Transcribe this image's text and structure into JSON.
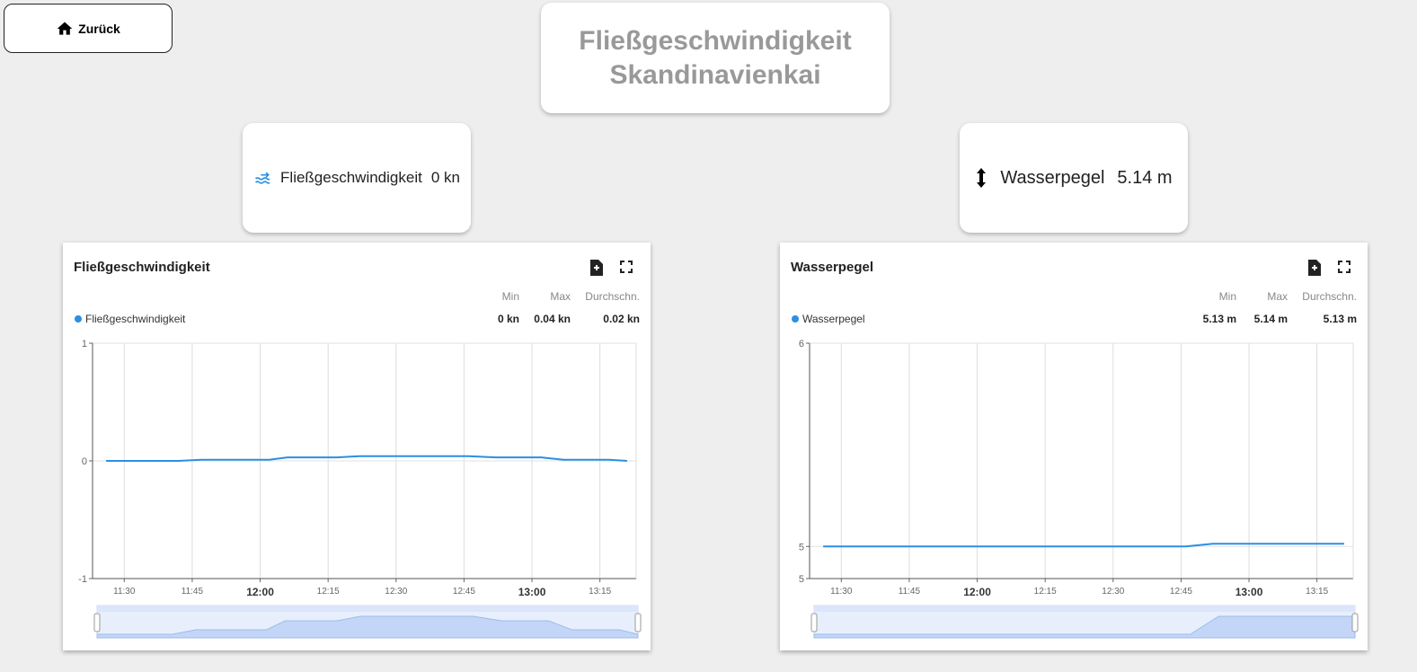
{
  "header": {
    "back_label": "Zurück",
    "title": [
      "Fließgeschwindigkeit",
      "Skandinavienkai"
    ]
  },
  "cards": [
    {
      "label": "Fließgeschwindigkeit",
      "value": "0 kn"
    },
    {
      "label": "Wasserpegel",
      "value": "5.14 m"
    }
  ],
  "chart_data": [
    {
      "type": "line",
      "title": "Fließgeschwindigkeit",
      "stats_headers": [
        "Min",
        "Max",
        "Durchschn."
      ],
      "stats_values": [
        "0 kn",
        "0.04 kn",
        "0.02 kn"
      ],
      "x": [
        "11:26",
        "11:33",
        "11:42",
        "11:47",
        "12:02",
        "12:06",
        "12:17",
        "12:22",
        "12:46",
        "12:52",
        "13:02",
        "13:07",
        "13:17",
        "13:21"
      ],
      "series": [
        {
          "name": "Fließgeschwindigkeit",
          "color": "#2b8fe3",
          "values": [
            0,
            0,
            0,
            0.01,
            0.01,
            0.03,
            0.03,
            0.04,
            0.04,
            0.03,
            0.03,
            0.01,
            0.01,
            0
          ]
        }
      ],
      "xlim": [
        "11:23",
        "13:23"
      ],
      "xticks": [
        "11:30",
        "11:45",
        "12:00",
        "12:15",
        "12:30",
        "12:45",
        "13:00",
        "13:15"
      ],
      "ylim": [
        -1,
        1
      ],
      "yticks": [
        -1,
        0,
        1
      ],
      "grid": true
    },
    {
      "type": "line",
      "title": "Wasserpegel",
      "stats_headers": [
        "Min",
        "Max",
        "Durchschn."
      ],
      "stats_values": [
        "5.13 m",
        "5.14 m",
        "5.13 m"
      ],
      "x": [
        "11:26",
        "12:46",
        "12:52",
        "13:21"
      ],
      "series": [
        {
          "name": "Wasserpegel",
          "color": "#2b8fe3",
          "values": [
            5.13,
            5.13,
            5.14,
            5.14
          ]
        }
      ],
      "xlim": [
        "11:23",
        "13:23"
      ],
      "xticks": [
        "11:30",
        "11:45",
        "12:00",
        "12:15",
        "12:30",
        "12:45",
        "13:00",
        "13:15"
      ],
      "ylim": [
        5.01,
        5.89
      ],
      "yticks": [
        {
          "value": 5.01,
          "label": "5"
        },
        {
          "value": 5.13,
          "label": "5"
        },
        {
          "value": 5.89,
          "label": "6"
        }
      ],
      "grid": true
    }
  ]
}
